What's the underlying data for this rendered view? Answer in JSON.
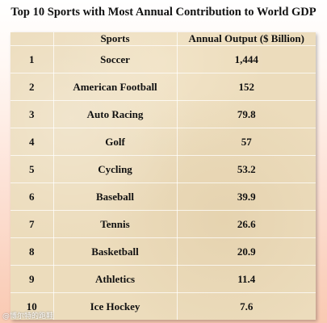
{
  "title": "Top 10 Sports with Most Annual Contribution to World GDP",
  "chart_data": {
    "type": "table",
    "columns": [
      "",
      "Sports",
      "Annual Output ($ Billion)"
    ],
    "rows": [
      {
        "rank": "1",
        "sport": "Soccer",
        "output": "1,444"
      },
      {
        "rank": "2",
        "sport": "American Football",
        "output": "152"
      },
      {
        "rank": "3",
        "sport": "Auto Racing",
        "output": "79.8"
      },
      {
        "rank": "4",
        "sport": "Golf",
        "output": "57"
      },
      {
        "rank": "5",
        "sport": "Cycling",
        "output": "53.2"
      },
      {
        "rank": "6",
        "sport": "Baseball",
        "output": "39.9"
      },
      {
        "rank": "7",
        "sport": "Tennis",
        "output": "26.6"
      },
      {
        "rank": "8",
        "sport": "Basketball",
        "output": "20.9"
      },
      {
        "rank": "9",
        "sport": "Athletics",
        "output": "11.4"
      },
      {
        "rank": "10",
        "sport": "Ice Hockey",
        "output": "7.6"
      }
    ]
  },
  "watermark": "@博尔特的跑鞋"
}
